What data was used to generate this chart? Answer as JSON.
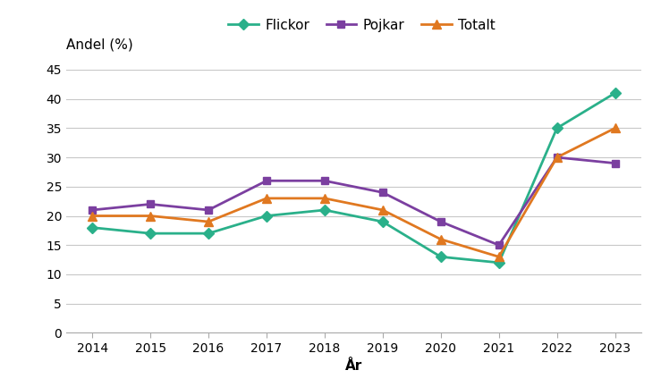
{
  "years": [
    2014,
    2015,
    2016,
    2017,
    2018,
    2019,
    2020,
    2021,
    2022,
    2023
  ],
  "flickor": [
    18,
    17,
    17,
    20,
    21,
    19,
    13,
    12,
    35,
    41
  ],
  "pojkar": [
    21,
    22,
    21,
    26,
    26,
    24,
    19,
    15,
    30,
    29
  ],
  "totalt": [
    20,
    20,
    19,
    23,
    23,
    21,
    16,
    13,
    30,
    35
  ],
  "flickor_color": "#2ab08a",
  "pojkar_color": "#7b3fa0",
  "totalt_color": "#e07820",
  "ylabel_text": "Andel (%)",
  "xlabel": "År",
  "ylim": [
    0,
    45
  ],
  "yticks": [
    0,
    5,
    10,
    15,
    20,
    25,
    30,
    35,
    40,
    45
  ],
  "legend_labels": [
    "Flickor",
    "Pojkar",
    "Totalt"
  ],
  "background_color": "#ffffff",
  "plot_bg_color": "#ffffff",
  "grid_color": "#c8c8c8",
  "spine_color": "#aaaaaa",
  "tick_fontsize": 10,
  "label_fontsize": 11,
  "legend_fontsize": 11,
  "linewidth": 2.0,
  "marker_size": 6
}
